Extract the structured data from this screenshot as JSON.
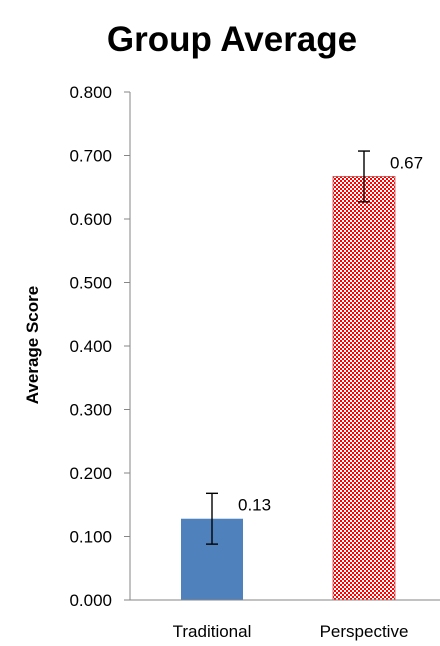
{
  "chart_data": {
    "type": "bar",
    "title": "Group Average",
    "xlabel": "",
    "ylabel": "Average Score",
    "categories": [
      "Traditional",
      "Perspective"
    ],
    "values": [
      0.128,
      0.667
    ],
    "error": [
      0.04,
      0.04
    ],
    "data_labels": [
      "0.13",
      "0.67"
    ],
    "ylim": [
      0,
      0.8
    ],
    "yticks": [
      0,
      0.1,
      0.2,
      0.3,
      0.4,
      0.5,
      0.6,
      0.7,
      0.8
    ],
    "ytick_labels": [
      "0.000",
      "0.100",
      "0.200",
      "0.300",
      "0.400",
      "0.500",
      "0.600",
      "0.700",
      "0.800"
    ],
    "grid": false,
    "legend": "none",
    "bar_styles": [
      {
        "fill": "solid",
        "color": "#4F81BD"
      },
      {
        "fill": "checker-pattern",
        "color": "#FF0000",
        "background": "#FFFFFF",
        "border": "#C0504D"
      }
    ],
    "axis_color": "#868686"
  }
}
